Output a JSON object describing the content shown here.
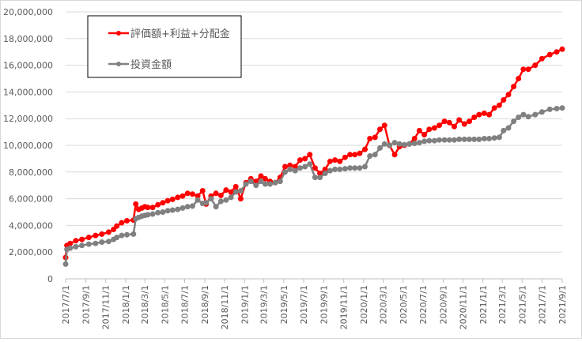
{
  "chart_data": {
    "type": "line",
    "title": "",
    "xlabel": "",
    "ylabel": "",
    "ylim": [
      0,
      20000000
    ],
    "y_ticks": [
      "0",
      "2,000,000",
      "4,000,000",
      "6,000,000",
      "8,000,000",
      "10,000,000",
      "12,000,000",
      "14,000,000",
      "16,000,000",
      "18,000,000",
      "20,000,000"
    ],
    "x_tick_labels": [
      "2017/7/1",
      "2017/9/1",
      "2017/11/1",
      "2018/1/1",
      "2018/3/1",
      "2018/5/1",
      "2018/7/1",
      "2018/9/1",
      "2018/11/1",
      "2019/1/1",
      "2019/3/1",
      "2019/5/1",
      "2019/7/1",
      "2019/9/1",
      "2019/11/1",
      "2020/1/1",
      "2020/3/1",
      "2020/5/1",
      "2020/7/1",
      "2020/9/1",
      "2020/11/1",
      "2021/1/1",
      "2021/3/1",
      "2021/5/1",
      "2021/7/1",
      "2021/9/1"
    ],
    "x_range": [
      "2017/7/1",
      "2021/9/1"
    ],
    "grid": "horizontal",
    "legend_position": "top-left",
    "series": [
      {
        "name": "評価額+利益+分配金",
        "color": "#ff0000",
        "points": [
          [
            "2017/7/1",
            1600000
          ],
          [
            "2017/7/5",
            2500000
          ],
          [
            "2017/7/15",
            2650000
          ],
          [
            "2017/8/1",
            2850000
          ],
          [
            "2017/8/20",
            2950000
          ],
          [
            "2017/9/10",
            3100000
          ],
          [
            "2017/10/1",
            3250000
          ],
          [
            "2017/10/20",
            3350000
          ],
          [
            "2017/11/10",
            3500000
          ],
          [
            "2017/11/25",
            3700000
          ],
          [
            "2017/12/5",
            3950000
          ],
          [
            "2017/12/20",
            4200000
          ],
          [
            "2018/1/5",
            4350000
          ],
          [
            "2018/1/25",
            4400000
          ],
          [
            "2018/2/1",
            5600000
          ],
          [
            "2018/2/10",
            5200000
          ],
          [
            "2018/2/20",
            5300000
          ],
          [
            "2018/3/1",
            5400000
          ],
          [
            "2018/3/10",
            5350000
          ],
          [
            "2018/3/25",
            5350000
          ],
          [
            "2018/4/10",
            5550000
          ],
          [
            "2018/4/25",
            5700000
          ],
          [
            "2018/5/10",
            5850000
          ],
          [
            "2018/5/25",
            5950000
          ],
          [
            "2018/6/10",
            6100000
          ],
          [
            "2018/6/25",
            6200000
          ],
          [
            "2018/7/10",
            6400000
          ],
          [
            "2018/7/25",
            6350000
          ],
          [
            "2018/8/10",
            6200000
          ],
          [
            "2018/8/25",
            6600000
          ],
          [
            "2018/9/5",
            5600000
          ],
          [
            "2018/9/20",
            6200000
          ],
          [
            "2018/10/5",
            6400000
          ],
          [
            "2018/10/20",
            6250000
          ],
          [
            "2018/11/5",
            6650000
          ],
          [
            "2018/11/20",
            6500000
          ],
          [
            "2018/12/5",
            6900000
          ],
          [
            "2018/12/20",
            6000000
          ],
          [
            "2019/1/5",
            7200000
          ],
          [
            "2019/1/20",
            7500000
          ],
          [
            "2019/2/5",
            7300000
          ],
          [
            "2019/2/20",
            7700000
          ],
          [
            "2019/3/5",
            7500000
          ],
          [
            "2019/3/20",
            7300000
          ],
          [
            "2019/4/5",
            7200000
          ],
          [
            "2019/4/20",
            7600000
          ],
          [
            "2019/5/5",
            8400000
          ],
          [
            "2019/5/20",
            8500000
          ],
          [
            "2019/6/5",
            8400000
          ],
          [
            "2019/6/20",
            8900000
          ],
          [
            "2019/7/5",
            9000000
          ],
          [
            "2019/7/20",
            9300000
          ],
          [
            "2019/8/5",
            8300000
          ],
          [
            "2019/8/20",
            7900000
          ],
          [
            "2019/9/5",
            8200000
          ],
          [
            "2019/9/20",
            8800000
          ],
          [
            "2019/10/5",
            8900000
          ],
          [
            "2019/10/20",
            8800000
          ],
          [
            "2019/11/5",
            9100000
          ],
          [
            "2019/11/20",
            9300000
          ],
          [
            "2019/12/5",
            9300000
          ],
          [
            "2019/12/20",
            9400000
          ],
          [
            "2020/1/5",
            9700000
          ],
          [
            "2020/1/20",
            10500000
          ],
          [
            "2020/2/5",
            10600000
          ],
          [
            "2020/2/20",
            11200000
          ],
          [
            "2020/3/5",
            11500000
          ],
          [
            "2020/3/20",
            10000000
          ],
          [
            "2020/4/5",
            9300000
          ],
          [
            "2020/4/20",
            9900000
          ],
          [
            "2020/5/5",
            10000000
          ],
          [
            "2020/5/20",
            10100000
          ],
          [
            "2020/6/5",
            10500000
          ],
          [
            "2020/6/20",
            11100000
          ],
          [
            "2020/7/5",
            10800000
          ],
          [
            "2020/7/20",
            11200000
          ],
          [
            "2020/8/5",
            11300000
          ],
          [
            "2020/8/20",
            11500000
          ],
          [
            "2020/9/5",
            11800000
          ],
          [
            "2020/9/20",
            11700000
          ],
          [
            "2020/10/5",
            11400000
          ],
          [
            "2020/10/20",
            11900000
          ],
          [
            "2020/11/5",
            11600000
          ],
          [
            "2020/11/20",
            11800000
          ],
          [
            "2020/12/5",
            12100000
          ],
          [
            "2020/12/20",
            12300000
          ],
          [
            "2021/1/5",
            12400000
          ],
          [
            "2021/1/20",
            12300000
          ],
          [
            "2021/2/5",
            12800000
          ],
          [
            "2021/2/20",
            13000000
          ],
          [
            "2021/3/5",
            13400000
          ],
          [
            "2021/3/20",
            13800000
          ],
          [
            "2021/4/5",
            14400000
          ],
          [
            "2021/4/20",
            15000000
          ],
          [
            "2021/5/5",
            15700000
          ],
          [
            "2021/5/20",
            15700000
          ],
          [
            "2021/6/10",
            16000000
          ],
          [
            "2021/7/1",
            16500000
          ],
          [
            "2021/7/25",
            16800000
          ],
          [
            "2021/8/15",
            17000000
          ],
          [
            "2021/9/1",
            17200000
          ]
        ]
      },
      {
        "name": "投資金額",
        "color": "#808080",
        "points": [
          [
            "2017/7/1",
            1100000
          ],
          [
            "2017/7/5",
            2200000
          ],
          [
            "2017/7/15",
            2300000
          ],
          [
            "2017/8/1",
            2400000
          ],
          [
            "2017/8/20",
            2500000
          ],
          [
            "2017/9/10",
            2600000
          ],
          [
            "2017/10/1",
            2650000
          ],
          [
            "2017/10/20",
            2750000
          ],
          [
            "2017/11/10",
            2800000
          ],
          [
            "2017/11/25",
            2950000
          ],
          [
            "2017/12/5",
            3100000
          ],
          [
            "2017/12/20",
            3250000
          ],
          [
            "2018/1/5",
            3300000
          ],
          [
            "2018/1/25",
            3350000
          ],
          [
            "2018/2/1",
            4500000
          ],
          [
            "2018/2/10",
            4600000
          ],
          [
            "2018/2/20",
            4700000
          ],
          [
            "2018/3/1",
            4750000
          ],
          [
            "2018/3/10",
            4800000
          ],
          [
            "2018/3/25",
            4850000
          ],
          [
            "2018/4/10",
            4950000
          ],
          [
            "2018/4/25",
            5000000
          ],
          [
            "2018/5/10",
            5100000
          ],
          [
            "2018/5/25",
            5150000
          ],
          [
            "2018/6/10",
            5200000
          ],
          [
            "2018/6/25",
            5300000
          ],
          [
            "2018/7/10",
            5400000
          ],
          [
            "2018/7/25",
            5450000
          ],
          [
            "2018/8/10",
            5900000
          ],
          [
            "2018/8/25",
            5650000
          ],
          [
            "2018/9/5",
            5700000
          ],
          [
            "2018/9/20",
            6000000
          ],
          [
            "2018/10/5",
            5400000
          ],
          [
            "2018/10/20",
            5800000
          ],
          [
            "2018/11/5",
            5900000
          ],
          [
            "2018/11/20",
            6100000
          ],
          [
            "2018/12/5",
            6500000
          ],
          [
            "2018/12/20",
            6600000
          ],
          [
            "2019/1/5",
            7100000
          ],
          [
            "2019/1/20",
            7300000
          ],
          [
            "2019/2/5",
            7000000
          ],
          [
            "2019/2/20",
            7300000
          ],
          [
            "2019/3/5",
            7100000
          ],
          [
            "2019/3/20",
            7100000
          ],
          [
            "2019/4/5",
            7200000
          ],
          [
            "2019/4/20",
            7300000
          ],
          [
            "2019/5/5",
            8000000
          ],
          [
            "2019/5/20",
            8200000
          ],
          [
            "2019/6/5",
            8100000
          ],
          [
            "2019/6/20",
            8300000
          ],
          [
            "2019/7/5",
            8400000
          ],
          [
            "2019/7/20",
            8600000
          ],
          [
            "2019/8/5",
            7600000
          ],
          [
            "2019/8/20",
            7600000
          ],
          [
            "2019/9/5",
            7900000
          ],
          [
            "2019/9/20",
            8100000
          ],
          [
            "2019/10/5",
            8200000
          ],
          [
            "2019/10/20",
            8200000
          ],
          [
            "2019/11/5",
            8250000
          ],
          [
            "2019/11/20",
            8300000
          ],
          [
            "2019/12/5",
            8300000
          ],
          [
            "2019/12/20",
            8300000
          ],
          [
            "2020/1/5",
            8400000
          ],
          [
            "2020/1/20",
            9200000
          ],
          [
            "2020/2/5",
            9300000
          ],
          [
            "2020/2/20",
            9800000
          ],
          [
            "2020/3/5",
            10100000
          ],
          [
            "2020/3/20",
            10000000
          ],
          [
            "2020/4/5",
            10200000
          ],
          [
            "2020/4/20",
            10100000
          ],
          [
            "2020/5/5",
            10050000
          ],
          [
            "2020/5/20",
            10100000
          ],
          [
            "2020/6/5",
            10150000
          ],
          [
            "2020/6/20",
            10200000
          ],
          [
            "2020/7/5",
            10300000
          ],
          [
            "2020/7/20",
            10350000
          ],
          [
            "2020/8/5",
            10350000
          ],
          [
            "2020/8/20",
            10400000
          ],
          [
            "2020/9/5",
            10400000
          ],
          [
            "2020/9/20",
            10400000
          ],
          [
            "2020/10/5",
            10400000
          ],
          [
            "2020/10/20",
            10450000
          ],
          [
            "2020/11/5",
            10450000
          ],
          [
            "2020/11/20",
            10450000
          ],
          [
            "2020/12/5",
            10450000
          ],
          [
            "2020/12/20",
            10450000
          ],
          [
            "2021/1/5",
            10500000
          ],
          [
            "2021/1/20",
            10500000
          ],
          [
            "2021/2/5",
            10550000
          ],
          [
            "2021/2/20",
            10600000
          ],
          [
            "2021/3/5",
            11100000
          ],
          [
            "2021/3/20",
            11300000
          ],
          [
            "2021/4/5",
            11800000
          ],
          [
            "2021/4/20",
            12100000
          ],
          [
            "2021/5/5",
            12300000
          ],
          [
            "2021/5/20",
            12150000
          ],
          [
            "2021/6/10",
            12300000
          ],
          [
            "2021/7/1",
            12500000
          ],
          [
            "2021/7/25",
            12700000
          ],
          [
            "2021/8/15",
            12750000
          ],
          [
            "2021/9/1",
            12800000
          ]
        ]
      }
    ]
  }
}
